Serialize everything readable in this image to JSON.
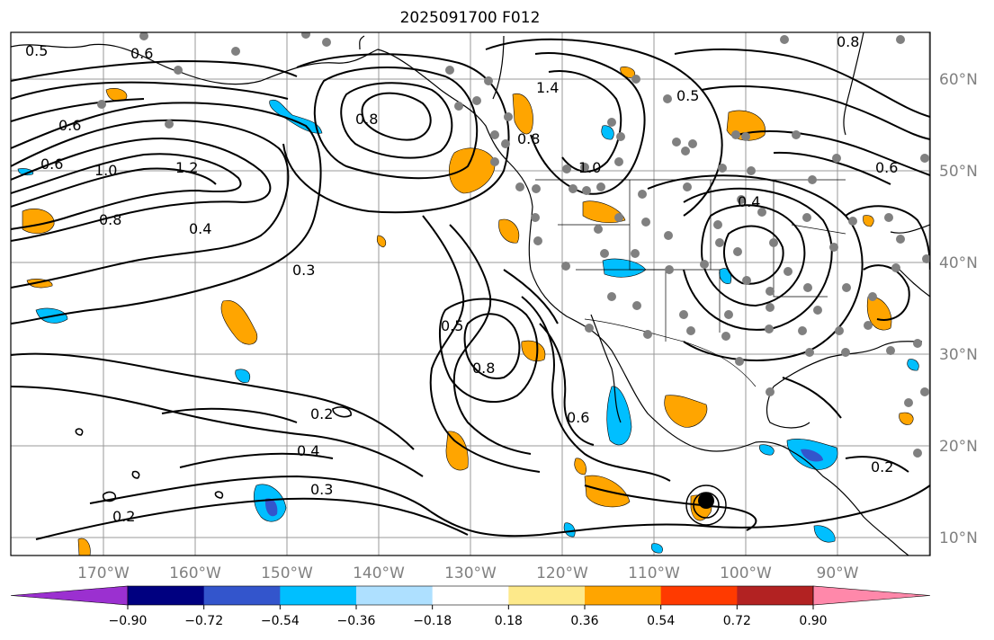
{
  "title": "2025091700 F012",
  "x_ticks": [
    "170°W",
    "160°W",
    "150°W",
    "140°W",
    "130°W",
    "120°W",
    "110°W",
    "100°W",
    "90°W"
  ],
  "y_ticks": [
    "60°N",
    "50°N",
    "40°N",
    "30°N",
    "20°N",
    "10°N"
  ],
  "colorbar": {
    "colors": [
      "#9b30d0",
      "#000080",
      "#3355cc",
      "#00bfff",
      "#aee0ff",
      "#ffffff",
      "#fde98a",
      "#ffa500",
      "#ff3a00",
      "#b22222",
      "#ff88aa"
    ],
    "labels": [
      "−0.90",
      "−0.72",
      "−0.54",
      "−0.36",
      "−0.18",
      "0.18",
      "0.36",
      "0.54",
      "0.72",
      "0.90"
    ]
  },
  "contour_labels": [
    "0.5",
    "0.6",
    "0.6",
    "0.6",
    "1.0",
    "1.2",
    "0.8",
    "0.4",
    "0.3",
    "1.4",
    "0.8",
    "1.0",
    "0.5",
    "0.8",
    "0.6",
    "0.4",
    "0.5",
    "0.8",
    "0.6",
    "0.2",
    "0.4",
    "0.3",
    "0.2",
    "0.2",
    "0.8"
  ],
  "legend_colors": {
    "positive": "#ffa500",
    "negative": "#00bfff",
    "contour": "#000000",
    "station": "#808080"
  }
}
